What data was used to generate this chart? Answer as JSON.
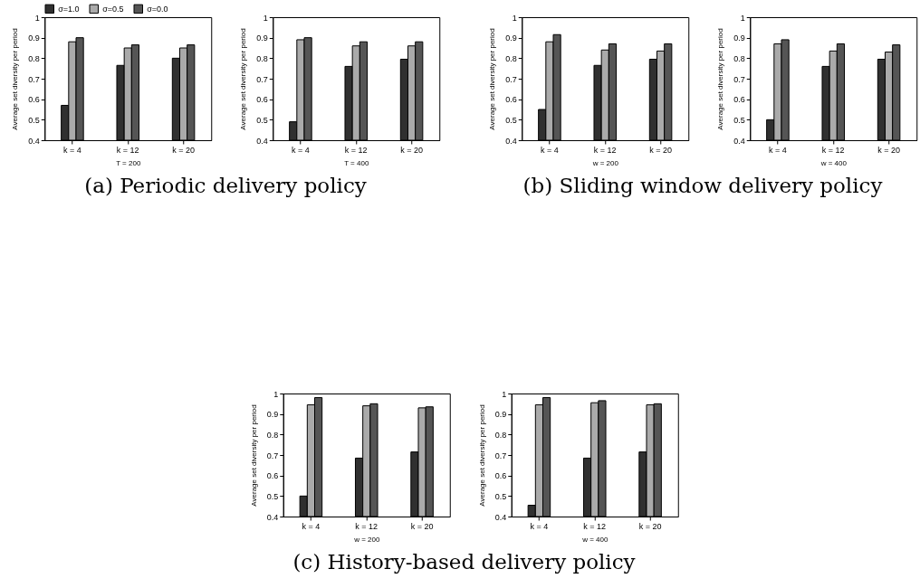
{
  "chart_data": [
    {
      "type": "bar",
      "categories": [
        "k = 4",
        "k = 12",
        "k = 20"
      ],
      "xlabel": "T = 200",
      "ylabel": "Average set diversity per period",
      "ylim": [
        0.4,
        1
      ],
      "yticks": [
        0.4,
        0.5,
        0.6,
        0.7,
        0.8,
        0.9,
        1
      ],
      "grid": false,
      "legend": "top left",
      "annotations": [
        "(a) Periodic delivery policy"
      ],
      "series": [
        {
          "name": "σ=1.0",
          "color": "#303030",
          "values": [
            0.57,
            0.765,
            0.8
          ]
        },
        {
          "name": "σ=0.5",
          "color": "#aaaaaa",
          "values": [
            0.88,
            0.85,
            0.85
          ]
        },
        {
          "name": "σ=0.0",
          "color": "#555555",
          "values": [
            0.9,
            0.865,
            0.865
          ]
        }
      ]
    },
    {
      "type": "bar",
      "categories": [
        "k = 4",
        "k = 12",
        "k = 20"
      ],
      "xlabel": "T = 400",
      "ylabel": "Average set diversity per period",
      "ylim": [
        0.4,
        1
      ],
      "yticks": [
        0.4,
        0.5,
        0.6,
        0.7,
        0.8,
        0.9,
        1
      ],
      "grid": false,
      "series": [
        {
          "color": "#303030",
          "values": [
            0.49,
            0.76,
            0.795
          ]
        },
        {
          "color": "#aaaaaa",
          "values": [
            0.89,
            0.86,
            0.86
          ]
        },
        {
          "color": "#555555",
          "values": [
            0.9,
            0.88,
            0.88
          ]
        }
      ]
    },
    {
      "type": "bar",
      "categories": [
        "k = 4",
        "k = 12",
        "k = 20"
      ],
      "xlabel": "w = 200",
      "ylabel": "Average set diversity per period",
      "ylim": [
        0.4,
        1
      ],
      "yticks": [
        0.4,
        0.5,
        0.6,
        0.7,
        0.8,
        0.9,
        1
      ],
      "grid": false,
      "annotations": [
        "(b) Sliding window delivery policy"
      ],
      "series": [
        {
          "color": "#303030",
          "values": [
            0.55,
            0.765,
            0.795
          ]
        },
        {
          "color": "#aaaaaa",
          "values": [
            0.88,
            0.84,
            0.835
          ]
        },
        {
          "color": "#555555",
          "values": [
            0.915,
            0.87,
            0.87
          ]
        }
      ]
    },
    {
      "type": "bar",
      "categories": [
        "k = 4",
        "k = 12",
        "k = 20"
      ],
      "xlabel": "w = 400",
      "ylabel": "Average set diversity per period",
      "ylim": [
        0.4,
        1
      ],
      "yticks": [
        0.4,
        0.5,
        0.6,
        0.7,
        0.8,
        0.9,
        1
      ],
      "grid": false,
      "series": [
        {
          "color": "#303030",
          "values": [
            0.5,
            0.76,
            0.795
          ]
        },
        {
          "color": "#aaaaaa",
          "values": [
            0.87,
            0.835,
            0.83
          ]
        },
        {
          "color": "#555555",
          "values": [
            0.89,
            0.87,
            0.865
          ]
        }
      ]
    },
    {
      "type": "bar",
      "categories": [
        "k = 4",
        "k = 12",
        "k = 20"
      ],
      "xlabel": "w = 200",
      "ylabel": "Average set diversity per period",
      "ylim": [
        0.4,
        1
      ],
      "yticks": [
        0.4,
        0.5,
        0.6,
        0.7,
        0.8,
        0.9,
        1
      ],
      "grid": false,
      "annotations": [
        "(c) History-based delivery policy"
      ],
      "series": [
        {
          "color": "#303030",
          "values": [
            0.5,
            0.685,
            0.715
          ]
        },
        {
          "color": "#aaaaaa",
          "values": [
            0.945,
            0.94,
            0.93
          ]
        },
        {
          "color": "#555555",
          "values": [
            0.98,
            0.95,
            0.935
          ]
        }
      ]
    },
    {
      "type": "bar",
      "categories": [
        "k = 4",
        "k = 12",
        "k = 20"
      ],
      "xlabel": "w = 400",
      "ylabel": "Average set diversity per period",
      "ylim": [
        0.4,
        1
      ],
      "yticks": [
        0.4,
        0.5,
        0.6,
        0.7,
        0.8,
        0.9,
        1
      ],
      "grid": false,
      "series": [
        {
          "color": "#303030",
          "values": [
            0.455,
            0.685,
            0.715
          ]
        },
        {
          "color": "#aaaaaa",
          "values": [
            0.945,
            0.955,
            0.945
          ]
        },
        {
          "color": "#555555",
          "values": [
            0.98,
            0.965,
            0.95
          ]
        }
      ]
    }
  ]
}
